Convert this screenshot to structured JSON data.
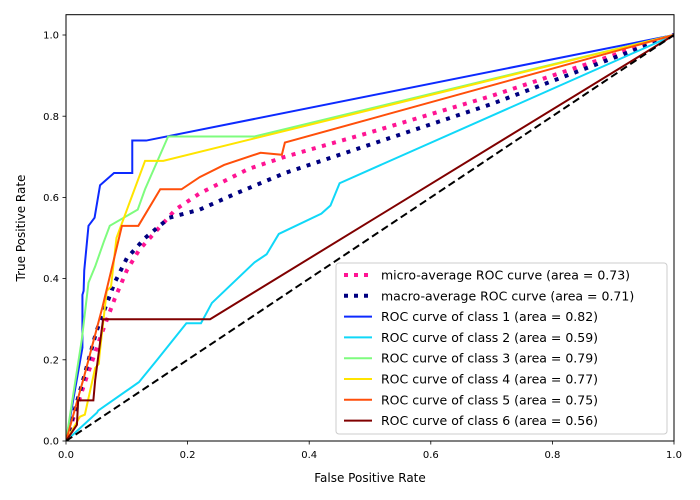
{
  "chart_data": {
    "type": "line",
    "title": "",
    "xlabel": "False Positive Rate",
    "ylabel": "True Positive Rate",
    "xlim": [
      0.0,
      1.0
    ],
    "ylim": [
      0.0,
      1.05
    ],
    "xticks": [
      0.0,
      0.2,
      0.4,
      0.6,
      0.8,
      1.0
    ],
    "xtick_labels": [
      "0.0",
      "0.2",
      "0.4",
      "0.6",
      "0.8",
      "1.0"
    ],
    "yticks": [
      0.0,
      0.2,
      0.4,
      0.6,
      0.8,
      1.0
    ],
    "ytick_labels": [
      "0.0",
      "0.2",
      "0.4",
      "0.6",
      "0.8",
      "1.0"
    ],
    "grid": false,
    "legend_position": "lower-right",
    "diagonal": {
      "name": "chance",
      "color": "#000000",
      "style": "dashed",
      "points": [
        [
          0,
          0
        ],
        [
          1,
          1
        ]
      ]
    },
    "series": [
      {
        "name": "micro-average ROC curve (area = 0.73)",
        "key": "micro-average",
        "color": "#ff1493",
        "style": "dotted",
        "points": [
          [
            0,
            0
          ],
          [
            0.03,
            0.14
          ],
          [
            0.06,
            0.27
          ],
          [
            0.08,
            0.35
          ],
          [
            0.1,
            0.42
          ],
          [
            0.12,
            0.47
          ],
          [
            0.15,
            0.52
          ],
          [
            0.18,
            0.57
          ],
          [
            0.22,
            0.61
          ],
          [
            0.26,
            0.64
          ],
          [
            0.3,
            0.67
          ],
          [
            0.36,
            0.7
          ],
          [
            0.5,
            0.76
          ],
          [
            0.7,
            0.85
          ],
          [
            1,
            1
          ]
        ]
      },
      {
        "name": "macro-average ROC curve (area = 0.71)",
        "key": "macro-average",
        "color": "#000080",
        "style": "dotted",
        "points": [
          [
            0,
            0
          ],
          [
            0.03,
            0.16
          ],
          [
            0.05,
            0.27
          ],
          [
            0.08,
            0.39
          ],
          [
            0.1,
            0.45
          ],
          [
            0.13,
            0.5
          ],
          [
            0.17,
            0.55
          ],
          [
            0.22,
            0.57
          ],
          [
            0.28,
            0.61
          ],
          [
            0.36,
            0.66
          ],
          [
            0.5,
            0.73
          ],
          [
            0.7,
            0.83
          ],
          [
            1,
            1
          ]
        ]
      },
      {
        "name": "ROC curve of class 1 (area = 0.82)",
        "key": "class-1",
        "color": "#0d2aff",
        "style": "solid",
        "points": [
          [
            0,
            0
          ],
          [
            0.027,
            0.23
          ],
          [
            0.027,
            0.36
          ],
          [
            0.029,
            0.37
          ],
          [
            0.03,
            0.42
          ],
          [
            0.037,
            0.53
          ],
          [
            0.047,
            0.55
          ],
          [
            0.056,
            0.63
          ],
          [
            0.079,
            0.66
          ],
          [
            0.109,
            0.66
          ],
          [
            0.109,
            0.74
          ],
          [
            0.132,
            0.74
          ],
          [
            1,
            1
          ]
        ]
      },
      {
        "name": "ROC curve of class 2 (area = 0.59)",
        "key": "class-2",
        "color": "#10d8f8",
        "style": "solid",
        "points": [
          [
            0,
            0
          ],
          [
            0.051,
            0.07
          ],
          [
            0.053,
            0.075
          ],
          [
            0.12,
            0.145
          ],
          [
            0.15,
            0.2
          ],
          [
            0.198,
            0.29
          ],
          [
            0.222,
            0.29
          ],
          [
            0.24,
            0.34
          ],
          [
            0.31,
            0.44
          ],
          [
            0.33,
            0.46
          ],
          [
            0.35,
            0.51
          ],
          [
            0.42,
            0.56
          ],
          [
            0.435,
            0.58
          ],
          [
            0.45,
            0.635
          ],
          [
            1,
            1
          ]
        ]
      },
      {
        "name": "ROC curve of class 3 (area = 0.79)",
        "key": "class-3",
        "color": "#7efc7e",
        "style": "solid",
        "points": [
          [
            0,
            0
          ],
          [
            0.026,
            0.25
          ],
          [
            0.037,
            0.39
          ],
          [
            0.048,
            0.43
          ],
          [
            0.062,
            0.49
          ],
          [
            0.072,
            0.53
          ],
          [
            0.118,
            0.57
          ],
          [
            0.13,
            0.62
          ],
          [
            0.168,
            0.75
          ],
          [
            0.31,
            0.75
          ],
          [
            1,
            1
          ]
        ]
      },
      {
        "name": "ROC curve of class 4 (area = 0.77)",
        "key": "class-4",
        "color": "#ffe400",
        "style": "solid",
        "points": [
          [
            0,
            0
          ],
          [
            0.023,
            0.06
          ],
          [
            0.031,
            0.065
          ],
          [
            0.048,
            0.18
          ],
          [
            0.054,
            0.19
          ],
          [
            0.055,
            0.21
          ],
          [
            0.067,
            0.37
          ],
          [
            0.074,
            0.38
          ],
          [
            0.083,
            0.5
          ],
          [
            0.13,
            0.69
          ],
          [
            0.16,
            0.69
          ],
          [
            1,
            1
          ]
        ]
      },
      {
        "name": "ROC curve of class 5 (area = 0.75)",
        "key": "class-5",
        "color": "#ff4f0a",
        "style": "solid",
        "points": [
          [
            0,
            0
          ],
          [
            0.03,
            0.16
          ],
          [
            0.06,
            0.33
          ],
          [
            0.092,
            0.53
          ],
          [
            0.119,
            0.53
          ],
          [
            0.155,
            0.62
          ],
          [
            0.19,
            0.62
          ],
          [
            0.22,
            0.65
          ],
          [
            0.26,
            0.68
          ],
          [
            0.32,
            0.71
          ],
          [
            0.355,
            0.705
          ],
          [
            0.36,
            0.735
          ],
          [
            1,
            1
          ]
        ]
      },
      {
        "name": "ROC curve of class 6 (area = 0.56)",
        "key": "class-6",
        "color": "#800000",
        "style": "solid",
        "points": [
          [
            0,
            0
          ],
          [
            0.018,
            0.04
          ],
          [
            0.02,
            0.1
          ],
          [
            0.045,
            0.1
          ],
          [
            0.048,
            0.15
          ],
          [
            0.061,
            0.3
          ],
          [
            0.237,
            0.3
          ],
          [
            1,
            1
          ]
        ]
      }
    ]
  }
}
